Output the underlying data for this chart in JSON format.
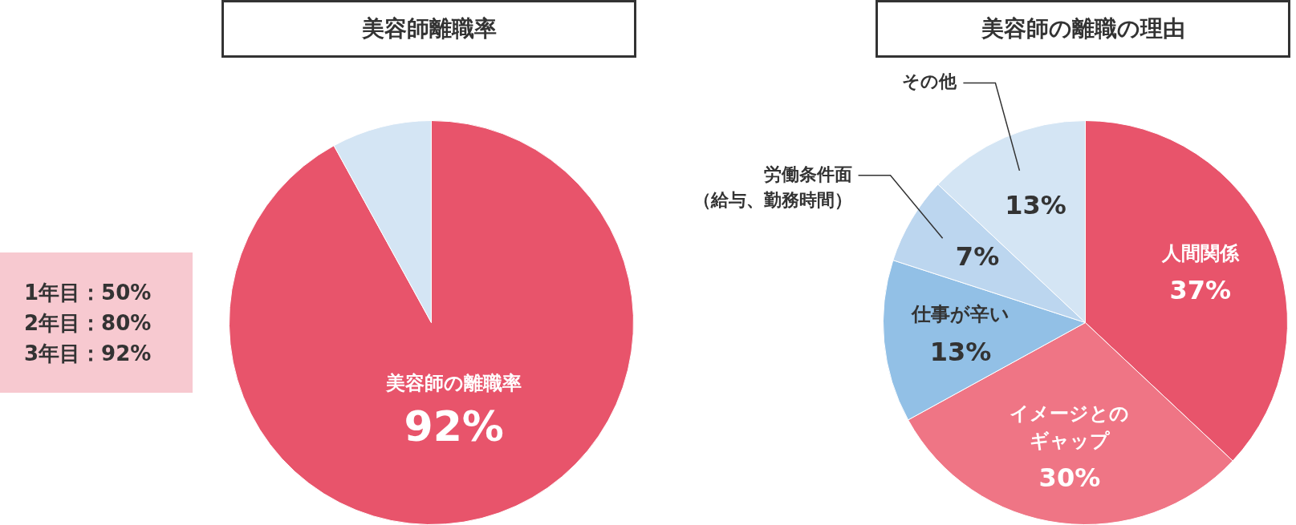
{
  "chart_data": [
    {
      "type": "pie",
      "title": "美容師離職率",
      "categories": [
        "美容師の離職率",
        null
      ],
      "values": [
        92,
        8
      ],
      "colors": [
        "#e8546b",
        "#d4e5f4"
      ],
      "value_labels": [
        "92%",
        null
      ],
      "legend": false,
      "annotations": [
        "1年目：50%",
        "2年目：80%",
        "3年目：92%"
      ]
    },
    {
      "type": "pie",
      "title": "美容師の離職の理由",
      "categories": [
        "人間関係",
        "イメージとのギャップ",
        "仕事が辛い",
        "労働条件面（給与、勤務時間）",
        "その他"
      ],
      "values": [
        37,
        30,
        13,
        7,
        13
      ],
      "colors": [
        "#e8546b",
        "#ef7585",
        "#92c0e6",
        "#bcd6ef",
        "#d4e5f4"
      ],
      "value_labels": [
        "37%",
        "30%",
        "13%",
        "7%",
        "13%"
      ],
      "legend": false
    }
  ]
}
